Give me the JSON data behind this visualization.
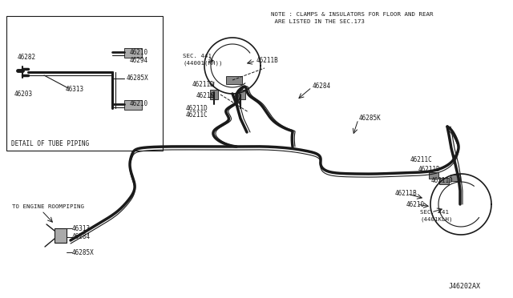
{
  "bg_color": "#ffffff",
  "line_color": "#1a1a1a",
  "fig_width": 6.4,
  "fig_height": 3.72,
  "dpi": 100,
  "note_text": "NOTE : CLAMPS & INSULATORS FOR FLOOR AND REAR\n ARE LISTED IN THE SEC.173",
  "part_id": "J46202AX",
  "detail_box_label": "DETAIL OF TUBE PIPING",
  "engine_room_label": "TO ENGINE ROOMPIPING"
}
